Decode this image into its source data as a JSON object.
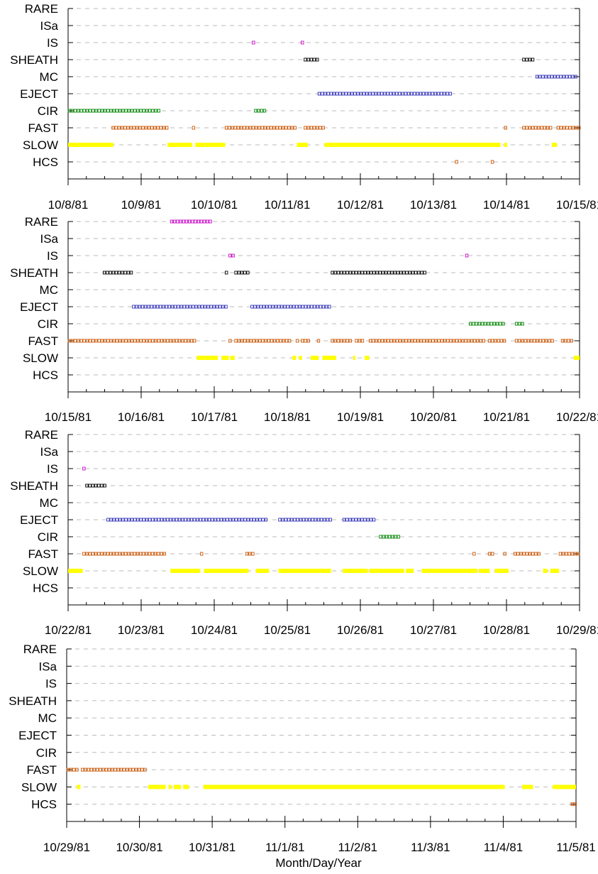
{
  "chart_data": {
    "type": "event-timeline",
    "xlabel": "Month/Day/Year",
    "categories": [
      "RARE",
      "ISa",
      "IS",
      "SHEATH",
      "MC",
      "EJECT",
      "CIR",
      "FAST",
      "SLOW",
      "HCS"
    ],
    "styles": {
      "RARE": {
        "color": "#cc00cc",
        "mark": "box"
      },
      "ISa": {
        "color": "#cc00cc",
        "mark": "box"
      },
      "IS": {
        "color": "#cc00cc",
        "mark": "box"
      },
      "SHEATH": {
        "color": "#000000",
        "mark": "box"
      },
      "MC": {
        "color": "#3333bb",
        "mark": "box"
      },
      "EJECT": {
        "color": "#3333bb",
        "mark": "box"
      },
      "CIR": {
        "color": "#008800",
        "mark": "box"
      },
      "FAST": {
        "color": "#cc5500",
        "mark": "box"
      },
      "SLOW": {
        "color": "#ffff00",
        "mark": "bar"
      },
      "HCS": {
        "color": "#cc5500",
        "mark": "box"
      }
    },
    "panels": [
      {
        "start": "1981-10-08",
        "end": "1981-10-15",
        "date_labels": [
          "10/8/81",
          "10/9/81",
          "10/10/81",
          "10/11/81",
          "10/12/81",
          "10/13/81",
          "10/14/81",
          "10/15/81"
        ],
        "events": {
          "RARE": [],
          "ISa": [],
          "IS": [
            [
              2.52,
              2.56
            ],
            [
              3.19,
              3.23
            ]
          ],
          "SHEATH": [
            [
              3.23,
              3.42
            ],
            [
              6.22,
              6.4
            ]
          ],
          "MC": [
            [
              6.4,
              6.98
            ]
          ],
          "EJECT": [
            [
              3.42,
              5.27
            ]
          ],
          "CIR": [
            [
              0.0,
              1.25
            ],
            [
              2.55,
              2.73
            ]
          ],
          "FAST": [
            [
              0.6,
              1.36
            ],
            [
              1.7,
              1.74
            ],
            [
              2.15,
              3.13
            ],
            [
              3.23,
              3.51
            ],
            [
              5.97,
              6.01
            ],
            [
              6.22,
              6.62
            ],
            [
              6.69,
              7.12
            ]
          ],
          "SLOW": [
            [
              0.0,
              0.62
            ],
            [
              1.36,
              1.7
            ],
            [
              1.74,
              2.15
            ],
            [
              3.13,
              3.28
            ],
            [
              3.51,
              5.92
            ],
            [
              5.97,
              6.01
            ],
            [
              6.62,
              6.69
            ]
          ],
          "HCS": [
            [
              5.3,
              5.34
            ],
            [
              5.79,
              5.84
            ]
          ]
        }
      },
      {
        "start": "1981-10-15",
        "end": "1981-10-22",
        "date_labels": [
          "10/15/81",
          "10/16/81",
          "10/17/81",
          "10/18/81",
          "10/19/81",
          "10/20/81",
          "10/21/81",
          "10/22/81"
        ],
        "events": {
          "RARE": [
            [
              1.4,
              1.97
            ]
          ],
          "ISa": [],
          "IS": [
            [
              2.2,
              2.29
            ],
            [
              5.44,
              5.48
            ]
          ],
          "SHEATH": [
            [
              0.48,
              0.89
            ],
            [
              2.15,
              2.2
            ],
            [
              2.28,
              2.48
            ],
            [
              3.6,
              4.92
            ]
          ],
          "MC": [],
          "EJECT": [
            [
              0.88,
              2.19
            ],
            [
              2.5,
              3.62
            ]
          ],
          "CIR": [
            [
              5.49,
              5.98
            ],
            [
              6.12,
              6.24
            ]
          ],
          "FAST": [
            [
              0.0,
              1.76
            ],
            [
              2.2,
              2.25
            ],
            [
              2.28,
              3.07
            ],
            [
              3.12,
              3.16
            ],
            [
              3.19,
              3.32
            ],
            [
              3.41,
              3.45
            ],
            [
              3.6,
              3.9
            ],
            [
              3.93,
              4.06
            ],
            [
              4.12,
              5.72
            ],
            [
              5.75,
              6.0
            ],
            [
              6.12,
              6.67
            ],
            [
              6.75,
              6.92
            ]
          ],
          "SLOW": [
            [
              1.76,
              2.05
            ],
            [
              2.1,
              2.2
            ],
            [
              2.22,
              2.28
            ],
            [
              3.07,
              3.12
            ],
            [
              3.16,
              3.2
            ],
            [
              3.32,
              3.43
            ],
            [
              3.48,
              3.67
            ],
            [
              3.9,
              3.93
            ],
            [
              4.06,
              4.12
            ],
            [
              6.92,
              7.12
            ]
          ],
          "HCS": []
        }
      },
      {
        "start": "1981-10-22",
        "end": "1981-10-29",
        "date_labels": [
          "10/22/81",
          "10/23/81",
          "10/24/81",
          "10/25/81",
          "10/26/81",
          "10/27/81",
          "10/28/81",
          "10/29/81"
        ],
        "events": {
          "RARE": [],
          "ISa": [],
          "IS": [
            [
              0.2,
              0.24
            ]
          ],
          "SHEATH": [
            [
              0.24,
              0.52
            ]
          ],
          "MC": [],
          "EJECT": [
            [
              0.53,
              2.72
            ],
            [
              2.88,
              3.6
            ],
            [
              3.76,
              4.22
            ]
          ],
          "CIR": [
            [
              4.26,
              4.55
            ]
          ],
          "FAST": [
            [
              0.2,
              1.36
            ],
            [
              1.81,
              1.86
            ],
            [
              2.43,
              2.57
            ],
            [
              5.54,
              5.6
            ],
            [
              5.75,
              5.85
            ],
            [
              5.96,
              6.02
            ],
            [
              6.1,
              6.45
            ],
            [
              6.72,
              7.17
            ]
          ],
          "SLOW": [
            [
              0.0,
              0.2
            ],
            [
              1.4,
              1.81
            ],
            [
              1.86,
              2.47
            ],
            [
              2.57,
              2.75
            ],
            [
              2.88,
              3.6
            ],
            [
              3.76,
              4.1
            ],
            [
              4.12,
              4.6
            ],
            [
              4.62,
              4.73
            ],
            [
              4.84,
              5.6
            ],
            [
              5.62,
              5.77
            ],
            [
              5.84,
              6.03
            ],
            [
              6.5,
              6.56
            ],
            [
              6.6,
              6.72
            ]
          ],
          "HCS": []
        }
      },
      {
        "start": "1981-10-29",
        "end": "1981-11-05",
        "date_labels": [
          "10/29/81",
          "10/30/81",
          "10/31/81",
          "11/1/81",
          "11/2/81",
          "11/3/81",
          "11/4/81",
          "11/5/81"
        ],
        "events": {
          "RARE": [],
          "ISa": [],
          "IS": [],
          "SHEATH": [],
          "MC": [],
          "EJECT": [],
          "CIR": [],
          "FAST": [
            [
              0.0,
              0.15
            ],
            [
              0.2,
              1.1
            ]
          ],
          "SLOW": [
            [
              0.14,
              0.19
            ],
            [
              1.12,
              1.36
            ],
            [
              1.4,
              1.44
            ],
            [
              1.47,
              1.57
            ],
            [
              1.6,
              1.68
            ],
            [
              1.88,
              6.02
            ],
            [
              6.26,
              6.41
            ],
            [
              6.68,
              7.12
            ]
          ],
          "HCS": [
            [
              6.93,
              7.01
            ]
          ]
        }
      }
    ]
  }
}
